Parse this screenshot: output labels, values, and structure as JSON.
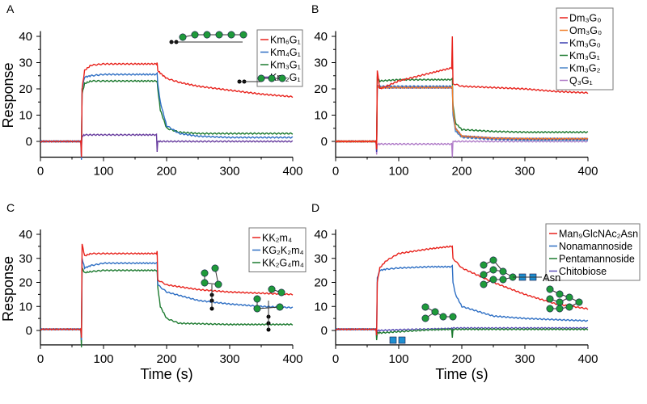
{
  "chart_data": [
    {
      "panel": "A",
      "type": "line",
      "ylabel": "Response",
      "xlabel": "",
      "xlim": [
        0,
        400
      ],
      "ylim": [
        -6,
        42
      ],
      "xticks": [
        0,
        100,
        200,
        300,
        400
      ],
      "yticks": [
        0,
        10,
        20,
        30,
        40
      ],
      "grid": false,
      "legend_position": "top-right",
      "series": [
        {
          "name": "Km₆G₁",
          "color": "#e8231d",
          "x": [
            0,
            64,
            65,
            66,
            70,
            80,
            100,
            150,
            184,
            185,
            186,
            190,
            200,
            220,
            250,
            300,
            350,
            400
          ],
          "y": [
            0,
            0,
            -6,
            20,
            27,
            29,
            29.5,
            29.5,
            29.5,
            30,
            27,
            26,
            24,
            22.5,
            21,
            19.5,
            18,
            17
          ]
        },
        {
          "name": "Km₄G₁",
          "color": "#2e6fc4",
          "x": [
            0,
            64,
            65,
            66,
            70,
            80,
            100,
            150,
            184,
            185,
            186,
            190,
            200,
            220,
            250,
            300,
            350,
            400
          ],
          "y": [
            0,
            0,
            -7,
            20,
            24.5,
            25,
            25.5,
            25.5,
            25.5,
            26,
            22,
            15,
            6,
            3,
            2,
            1.5,
            1.5,
            1.5
          ]
        },
        {
          "name": "Km₃G₁",
          "color": "#1c7a2f",
          "x": [
            0,
            64,
            65,
            66,
            70,
            80,
            100,
            150,
            184,
            185,
            186,
            190,
            200,
            220,
            250,
            300,
            350,
            400
          ],
          "y": [
            0,
            0,
            -2,
            18,
            22,
            23,
            23,
            23,
            23,
            23,
            20,
            12,
            5,
            3.5,
            3,
            3,
            3,
            3
          ]
        },
        {
          "name": "Km₂G₁",
          "color": "#6a3fa0",
          "x": [
            0,
            64,
            65,
            66,
            70,
            100,
            150,
            184,
            185,
            186,
            190,
            250,
            300,
            400
          ],
          "y": [
            0,
            0,
            -2,
            2,
            2.5,
            2.5,
            2.5,
            2.5,
            -4,
            0,
            0,
            0,
            0,
            0
          ]
        }
      ],
      "annotations": []
    },
    {
      "panel": "B",
      "type": "line",
      "ylabel": "",
      "xlabel": "",
      "xlim": [
        0,
        400
      ],
      "ylim": [
        -6,
        42
      ],
      "xticks": [
        0,
        100,
        200,
        300,
        400
      ],
      "yticks": [
        0,
        10,
        20,
        30,
        40
      ],
      "grid": false,
      "legend_position": "top-right",
      "series": [
        {
          "name": "Dm₃G₀",
          "color": "#e8231d",
          "x": [
            0,
            64,
            65,
            66,
            70,
            100,
            150,
            184,
            185,
            186,
            200,
            250,
            300,
            350,
            400
          ],
          "y": [
            0,
            0,
            -3,
            27,
            20,
            23,
            26,
            28,
            40,
            22,
            21,
            20.5,
            20,
            19,
            18.5
          ]
        },
        {
          "name": "Om₃G₀",
          "color": "#f07f2a",
          "x": [
            0,
            64,
            65,
            66,
            70,
            100,
            150,
            184,
            185,
            186,
            190,
            200,
            250,
            300,
            400
          ],
          "y": [
            0,
            0,
            -3,
            21,
            20.5,
            20.5,
            20.5,
            20.5,
            21,
            12,
            5,
            2,
            1.2,
            1,
            1
          ]
        },
        {
          "name": "Km₃G₀",
          "color": "#3b3fb0",
          "x": [
            0,
            64,
            65,
            66,
            70,
            100,
            150,
            184,
            185,
            186,
            190,
            200,
            250,
            300,
            400
          ],
          "y": [
            0,
            0,
            -4,
            21,
            20.5,
            20.5,
            20.5,
            20.5,
            21,
            12,
            5,
            2,
            1.2,
            1,
            1
          ]
        },
        {
          "name": "Km₃G₁",
          "color": "#1c7a2f",
          "x": [
            0,
            64,
            65,
            66,
            70,
            100,
            150,
            184,
            185,
            186,
            190,
            200,
            250,
            300,
            400
          ],
          "y": [
            0,
            0,
            -2,
            24,
            23,
            23.5,
            23.5,
            23.5,
            24,
            14,
            7,
            4.5,
            3.8,
            3.5,
            3.5
          ]
        },
        {
          "name": "Km₃G₂",
          "color": "#4a86c8",
          "x": [
            0,
            64,
            65,
            66,
            70,
            100,
            150,
            184,
            185,
            186,
            190,
            200,
            250,
            300,
            400
          ],
          "y": [
            0,
            0,
            -3,
            21,
            21,
            21,
            21,
            21,
            21,
            10,
            4,
            1.5,
            0.8,
            0.5,
            0.5
          ]
        },
        {
          "name": "Q₃G₁",
          "color": "#b07cc8",
          "x": [
            0,
            64,
            65,
            66,
            70,
            100,
            150,
            184,
            185,
            186,
            190,
            250,
            300,
            400
          ],
          "y": [
            0,
            0,
            -5,
            -1,
            -1,
            -1,
            -1,
            -1,
            -6,
            0,
            0,
            0,
            0,
            0
          ]
        }
      ],
      "annotations": []
    },
    {
      "panel": "C",
      "type": "line",
      "ylabel": "Response",
      "xlabel": "Time (s)",
      "xlim": [
        0,
        400
      ],
      "ylim": [
        -6,
        42
      ],
      "xticks": [
        0,
        100,
        200,
        300,
        400
      ],
      "yticks": [
        0,
        10,
        20,
        30,
        40
      ],
      "grid": false,
      "legend_position": "top-right",
      "series": [
        {
          "name": "KK₂m₄",
          "color": "#e8231d",
          "x": [
            0,
            64,
            65,
            66,
            70,
            80,
            100,
            150,
            184,
            185,
            186,
            200,
            250,
            300,
            350,
            400
          ],
          "y": [
            0.5,
            0.5,
            -3,
            36,
            31,
            32,
            32,
            32,
            32,
            33,
            21,
            19,
            17,
            16,
            15.5,
            15
          ]
        },
        {
          "name": "KG₂K₂m₄",
          "color": "#2e6fc4",
          "x": [
            0,
            64,
            65,
            66,
            70,
            80,
            100,
            150,
            184,
            185,
            186,
            200,
            250,
            300,
            350,
            400
          ],
          "y": [
            0.5,
            0.5,
            -4,
            30,
            26,
            27,
            28,
            28,
            28,
            28,
            19,
            16,
            12.5,
            11,
            10,
            9.5
          ]
        },
        {
          "name": "KK₂G₄m₄",
          "color": "#1c7a2f",
          "x": [
            0,
            64,
            65,
            66,
            70,
            80,
            100,
            150,
            184,
            185,
            186,
            190,
            200,
            220,
            250,
            300,
            400
          ],
          "y": [
            0.5,
            0.5,
            -7,
            26,
            24,
            24.5,
            25,
            25,
            25,
            25,
            18,
            10,
            5,
            3,
            2.8,
            2.5,
            2.5
          ]
        }
      ],
      "annotations": []
    },
    {
      "panel": "D",
      "type": "line",
      "ylabel": "",
      "xlabel": "Time (s)",
      "xlim": [
        0,
        400
      ],
      "ylim": [
        -6,
        42
      ],
      "xticks": [
        0,
        100,
        200,
        300,
        400
      ],
      "yticks": [
        0,
        10,
        20,
        30,
        40
      ],
      "grid": false,
      "legend_position": "top-right",
      "series": [
        {
          "name": "Man₉GlcNAc₂Asn",
          "color": "#e8231d",
          "x": [
            0,
            64,
            65,
            66,
            70,
            80,
            100,
            150,
            184,
            185,
            186,
            200,
            250,
            300,
            350,
            400
          ],
          "y": [
            0.5,
            0.5,
            -2,
            20,
            26,
            29,
            32,
            34,
            35,
            35,
            30,
            26,
            20,
            15,
            11,
            9
          ]
        },
        {
          "name": "Nonamannoside",
          "color": "#2e6fc4",
          "x": [
            0,
            64,
            65,
            66,
            70,
            80,
            100,
            150,
            184,
            185,
            186,
            190,
            200,
            250,
            300,
            350,
            400
          ],
          "y": [
            0.5,
            0.5,
            -2,
            22,
            25,
            25.5,
            26,
            26.5,
            26.5,
            27,
            20,
            15,
            10,
            6,
            5,
            4.5,
            4
          ]
        },
        {
          "name": "Pentamannoside",
          "color": "#1c7a2f",
          "x": [
            0,
            64,
            65,
            66,
            70,
            100,
            150,
            184,
            185,
            186,
            250,
            300,
            400
          ],
          "y": [
            0.5,
            0.5,
            -4,
            -1,
            -1,
            -0.5,
            0.3,
            0.5,
            -3,
            0.5,
            0.5,
            0.5,
            0.5
          ]
        },
        {
          "name": "Chitobiose",
          "color": "#5b4fb8",
          "x": [
            0,
            64,
            65,
            66,
            70,
            100,
            150,
            184,
            185,
            186,
            250,
            300,
            400
          ],
          "y": [
            0.5,
            0.5,
            -1,
            0,
            0,
            0.3,
            0.6,
            0.8,
            0.5,
            1,
            1,
            1,
            1
          ]
        }
      ],
      "annotations": [
        {
          "text": "Asn"
        }
      ]
    }
  ]
}
